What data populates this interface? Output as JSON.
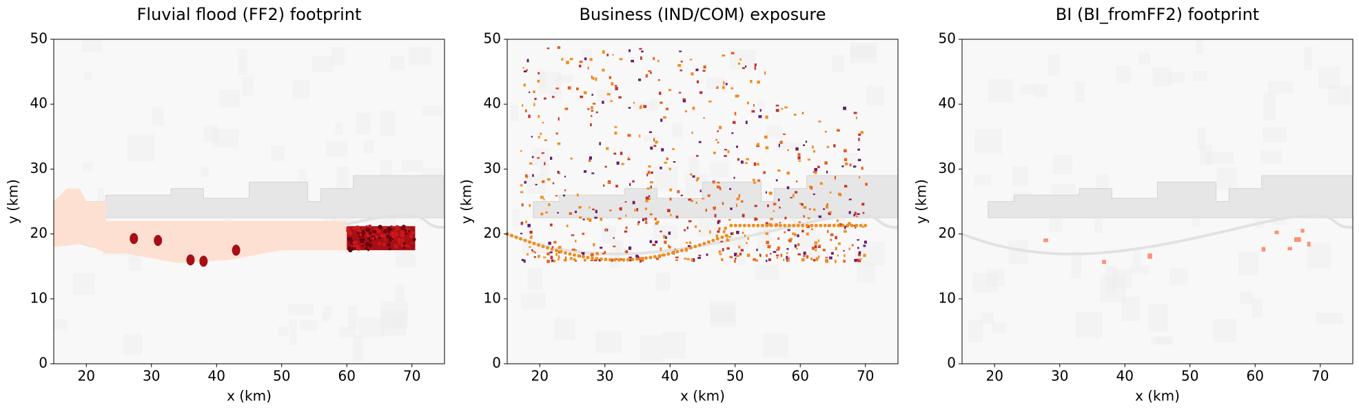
{
  "chart_data": [
    {
      "type": "raster",
      "title": "Fluvial flood (FF2) footprint",
      "xlabel": "x (km)",
      "ylabel": "y (km)",
      "xlim": [
        15,
        75
      ],
      "ylim": [
        0,
        50
      ],
      "xticks": [
        20,
        30,
        40,
        50,
        60,
        70
      ],
      "yticks": [
        0,
        10,
        20,
        30,
        40,
        50
      ]
    },
    {
      "type": "raster",
      "title": "Business (IND/COM) exposure",
      "xlabel": "x (km)",
      "ylabel": "y (km)",
      "xlim": [
        15,
        75
      ],
      "ylim": [
        0,
        50
      ],
      "xticks": [
        20,
        30,
        40,
        50,
        60,
        70
      ],
      "yticks": [
        0,
        10,
        20,
        30,
        40,
        50
      ]
    },
    {
      "type": "raster",
      "title": "BI (BI_fromFF2) footprint",
      "xlabel": "x (km)",
      "ylabel": "y (km)",
      "xlim": [
        15,
        75
      ],
      "ylim": [
        0,
        50
      ],
      "xticks": [
        20,
        30,
        40,
        50,
        60,
        70
      ],
      "yticks": [
        0,
        10,
        20,
        30,
        40,
        50
      ]
    }
  ]
}
